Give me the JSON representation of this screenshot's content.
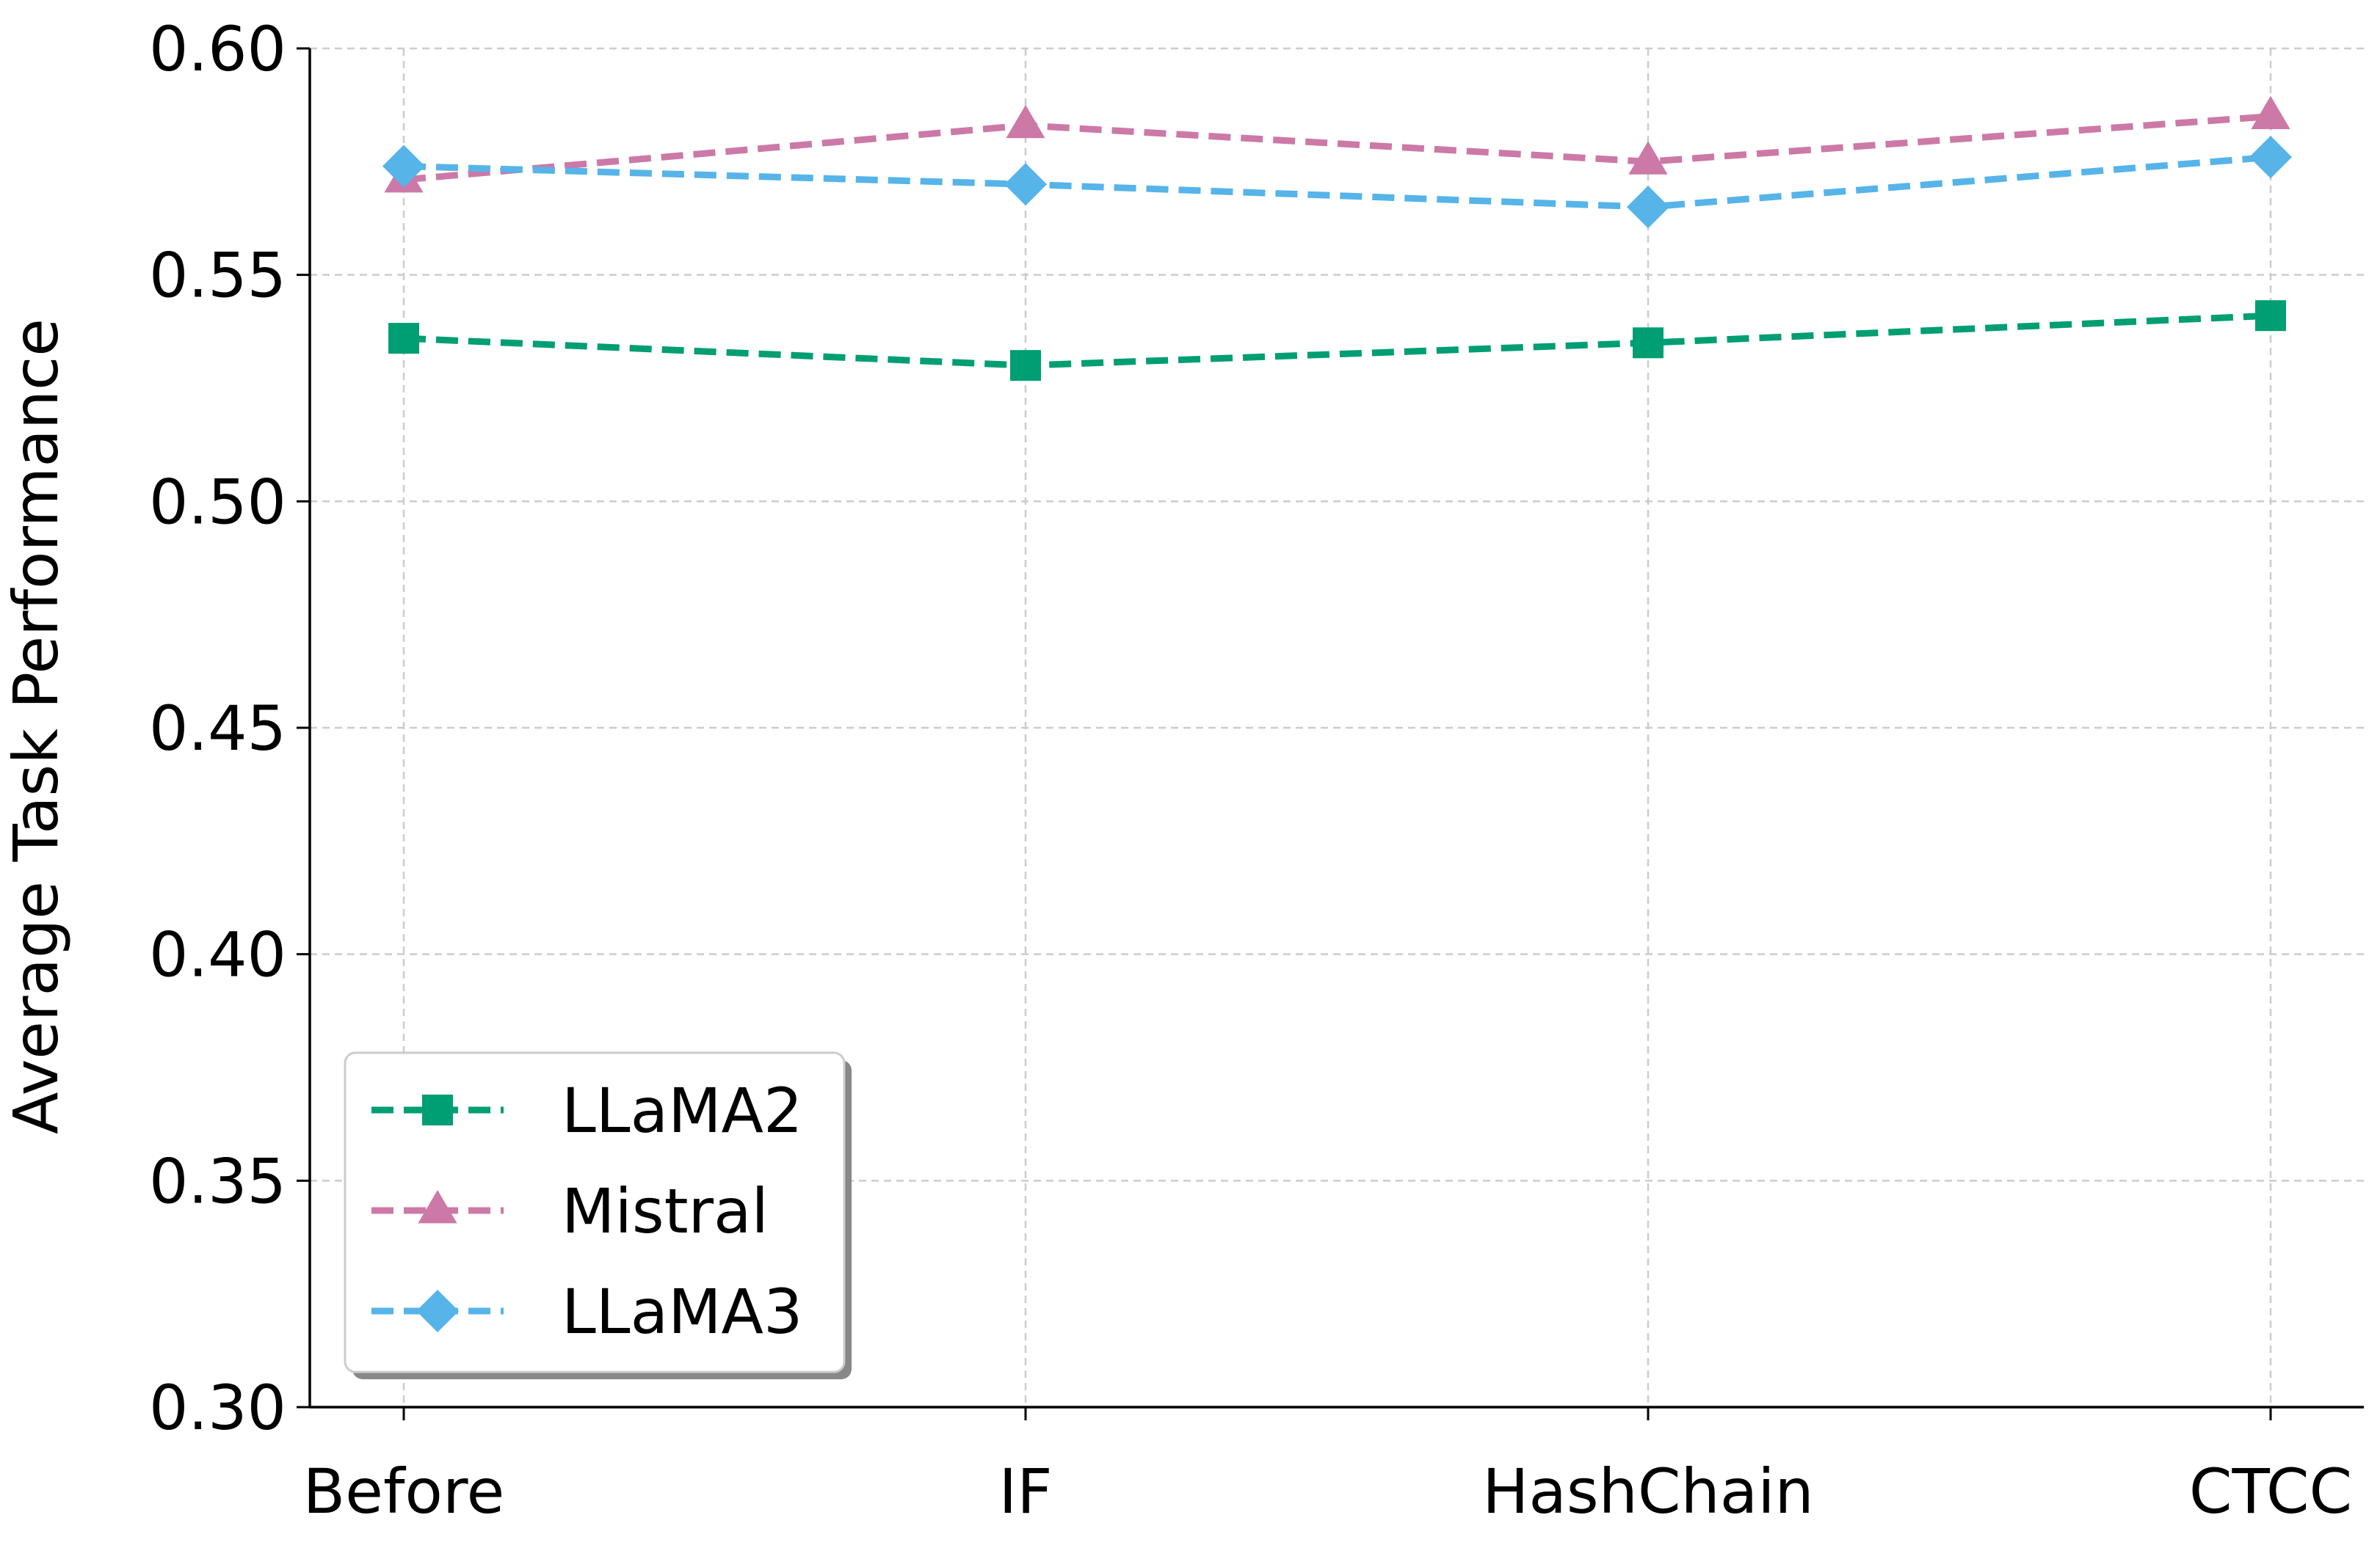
{
  "chart_data": {
    "type": "line",
    "title": "",
    "xlabel": "",
    "ylabel": "Average Task Performance",
    "categories": [
      "Before",
      "IF",
      "HashChain",
      "CTCC"
    ],
    "ylim": [
      0.3,
      0.6
    ],
    "yticks": [
      "0.30",
      "0.35",
      "0.40",
      "0.45",
      "0.50",
      "0.55",
      "0.60"
    ],
    "grid": true,
    "legend_position": "bottom-left",
    "series": [
      {
        "name": "LLaMA2",
        "values": [
          0.536,
          0.53,
          0.535,
          0.541
        ],
        "color": "#009E73",
        "marker": "square"
      },
      {
        "name": "Mistral",
        "values": [
          0.571,
          0.583,
          0.575,
          0.585
        ],
        "color": "#CC79A7",
        "marker": "triangle"
      },
      {
        "name": "LLaMA3",
        "values": [
          0.574,
          0.57,
          0.565,
          0.576
        ],
        "color": "#56B4E9",
        "marker": "diamond"
      }
    ]
  }
}
